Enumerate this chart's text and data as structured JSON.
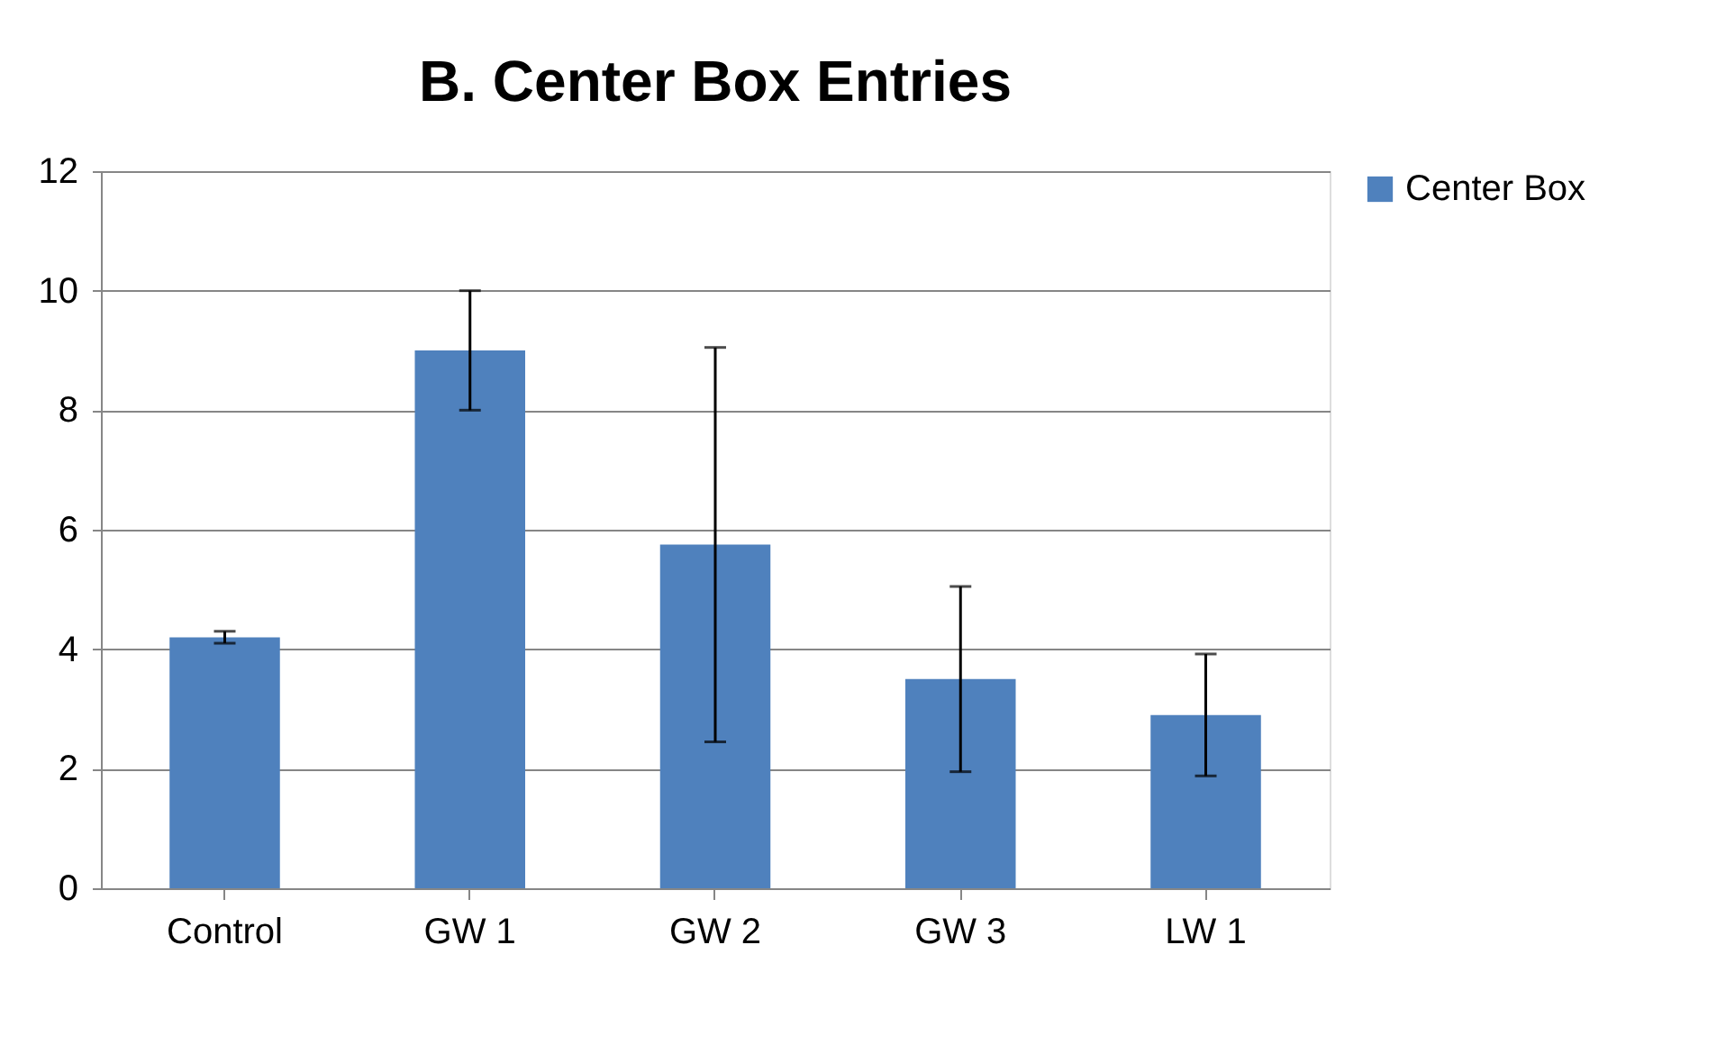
{
  "chart_data": {
    "type": "bar",
    "title": "B. Center Box Entries",
    "categories": [
      "Control",
      "GW 1",
      "GW 2",
      "GW 3",
      "LW 1"
    ],
    "series": [
      {
        "name": "Center Box",
        "color": "#4f81bd",
        "values": [
          4.2,
          9.0,
          5.75,
          3.5,
          2.9
        ],
        "errors": [
          0.1,
          1.0,
          3.3,
          1.55,
          1.02
        ]
      }
    ],
    "ylim": [
      0,
      12
    ],
    "yticks": [
      0,
      2,
      4,
      6,
      8,
      10,
      12
    ],
    "grid": "y",
    "legend": "right"
  }
}
